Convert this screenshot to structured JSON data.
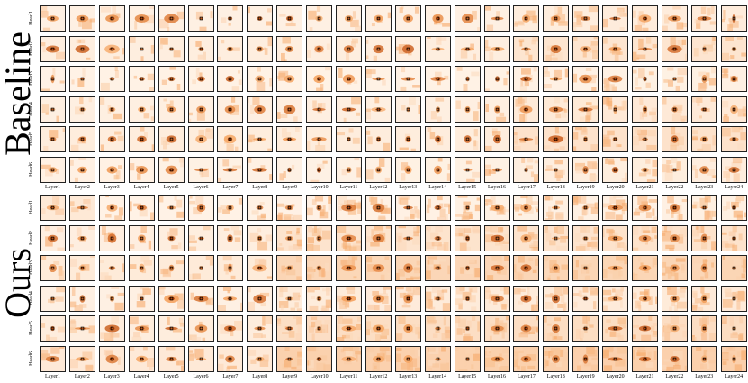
{
  "sections": [
    {
      "id": "baseline",
      "label": "Baseline"
    },
    {
      "id": "ours",
      "label": "Ours"
    }
  ],
  "rows": [
    "Head1",
    "Head2",
    "Head3",
    "Head4",
    "Head5",
    "Head6"
  ],
  "columns": [
    "Layer1",
    "Layer2",
    "Layer3",
    "Layer4",
    "Layer5",
    "Layer6",
    "Layer7",
    "Layer8",
    "Layer9",
    "Layer10",
    "Layer11",
    "Layer12",
    "Layer13",
    "Layer14",
    "Layer15",
    "Layer16",
    "Layer17",
    "Layer18",
    "Layer19",
    "Layer20",
    "Layer21",
    "Layer22",
    "Layer23",
    "Layer24"
  ],
  "colors": {
    "low": "#fff5eb",
    "mid": "#f5a05a",
    "high": "#b33c00",
    "marker": "#000000"
  }
}
